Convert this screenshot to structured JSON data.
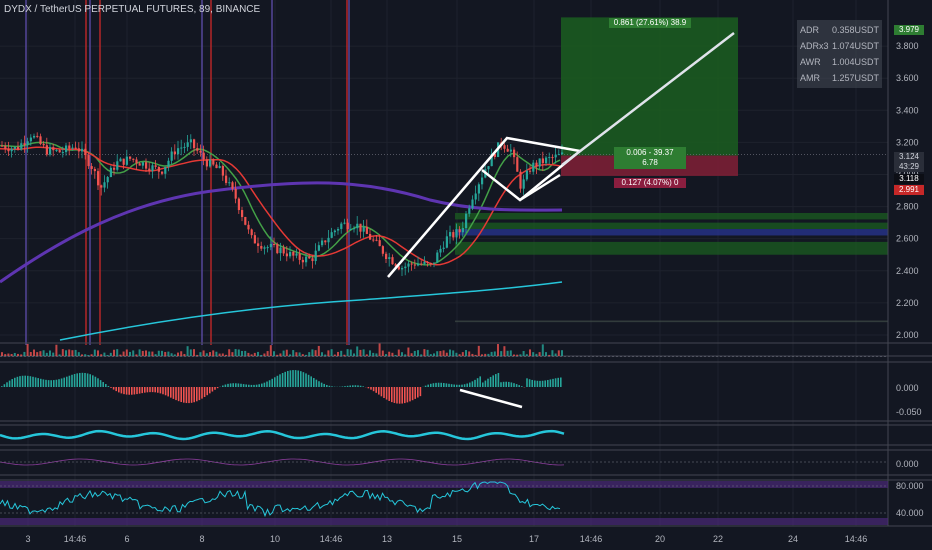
{
  "title": "DYDX / TetherUS PERPETUAL FUTURES, 89, BINANCE",
  "stats": [
    {
      "key": "ADR",
      "value": "0.358USDT"
    },
    {
      "key": "ADRx3",
      "value": "1.074USDT"
    },
    {
      "key": "AWR",
      "value": "1.004USDT"
    },
    {
      "key": "AMR",
      "value": "1.257USDT"
    }
  ],
  "trade_tags": {
    "target": "0.861 (27.61%) 38.9",
    "entry_line1": "0.006 - 39.37",
    "entry_line2": "6.78",
    "stop": "0.127 (4.07%) 0"
  },
  "price_labels": {
    "target": "3.979",
    "last_price": "3.124",
    "countdown": "43:29",
    "entry": "3.118",
    "stop": "2.991"
  },
  "colors": {
    "background": "#131722",
    "up": "#26a69a",
    "down": "#ef5350",
    "target_zone": "#1b5e20",
    "stop_zone": "#7b1f35",
    "pattern": "#ffffff",
    "ma_red": "#e53935",
    "ma_green": "#43a047",
    "ma_purple": "#5e35b1",
    "ma_teal": "#26c6da",
    "rsi": "#26c6da",
    "rsi_band": "#4a2a78"
  },
  "chart_data": {
    "type": "candlestick",
    "y_ticks": [
      "3.800",
      "3.600",
      "3.400",
      "3.200",
      "3.000",
      "2.800",
      "2.600",
      "2.400",
      "2.200",
      "2.000"
    ],
    "ylim": [
      1.95,
      4.0
    ],
    "x_ticks": [
      "3",
      "14:46",
      "6",
      "8",
      "10",
      "14:46",
      "13",
      "15",
      "17",
      "14:46",
      "20",
      "22",
      "24",
      "14:46"
    ],
    "pane_ticks": {
      "macd": [
        "0.000",
        "-0.050"
      ],
      "oscillator": [
        "0.000"
      ],
      "rsi": [
        "80.000",
        "40.000"
      ]
    },
    "price_path": [
      [
        0,
        3.18
      ],
      [
        15,
        3.16
      ],
      [
        30,
        3.25
      ],
      [
        45,
        3.15
      ],
      [
        60,
        3.14
      ],
      [
        75,
        3.18
      ],
      [
        90,
        3.06
      ],
      [
        100,
        2.92
      ],
      [
        115,
        3.07
      ],
      [
        130,
        3.1
      ],
      [
        145,
        3.06
      ],
      [
        160,
        3.02
      ],
      [
        175,
        3.16
      ],
      [
        190,
        3.19
      ],
      [
        205,
        3.08
      ],
      [
        220,
        3.02
      ],
      [
        235,
        2.85
      ],
      [
        250,
        2.6
      ],
      [
        265,
        2.55
      ],
      [
        280,
        2.53
      ],
      [
        295,
        2.48
      ],
      [
        310,
        2.47
      ],
      [
        325,
        2.6
      ],
      [
        340,
        2.69
      ],
      [
        355,
        2.69
      ],
      [
        370,
        2.6
      ],
      [
        385,
        2.5
      ],
      [
        400,
        2.42
      ],
      [
        415,
        2.45
      ],
      [
        430,
        2.43
      ],
      [
        445,
        2.6
      ],
      [
        460,
        2.65
      ],
      [
        470,
        2.85
      ],
      [
        485,
        3.05
      ],
      [
        500,
        3.2
      ],
      [
        510,
        3.15
      ],
      [
        520,
        2.92
      ],
      [
        530,
        3.05
      ],
      [
        545,
        3.09
      ],
      [
        560,
        3.12
      ]
    ],
    "trade": {
      "entry": 3.118,
      "target": 3.979,
      "stop": 2.991
    }
  }
}
